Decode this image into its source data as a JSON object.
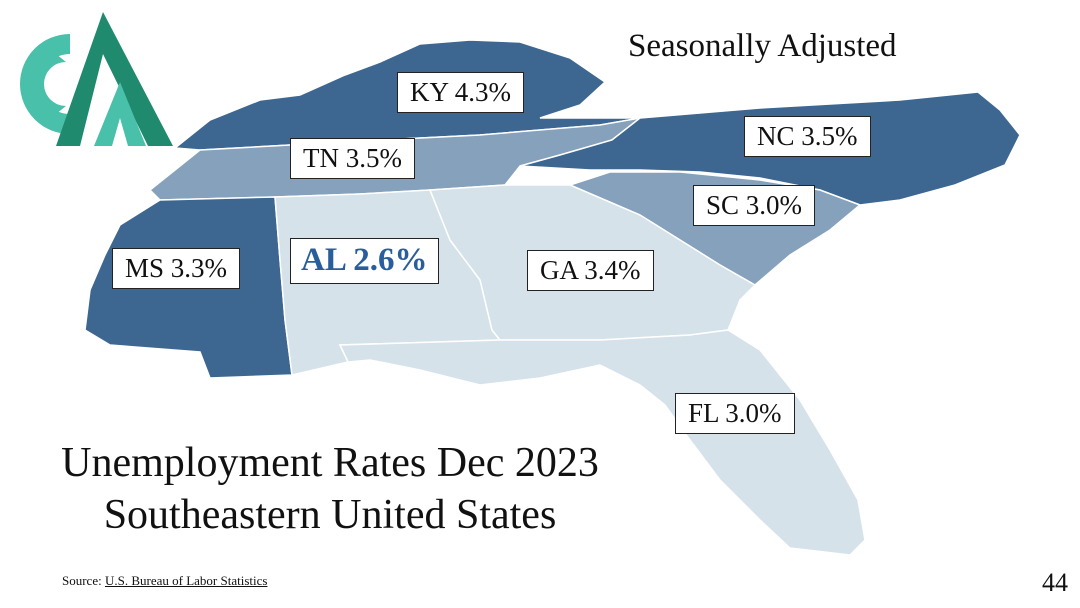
{
  "subtitle": "Seasonally Adjusted",
  "title_line1": "Unemployment Rates Dec 2023",
  "title_line2": "Southeastern United States",
  "source_prefix": "Source: ",
  "source_link": "U.S. Bureau of Labor Statistics",
  "page_number": "44",
  "colors": {
    "dark": "#3d6690",
    "medium": "#86a1bb",
    "light": "#d5e2ea",
    "highlight_text": "#2a5d9c",
    "logo_green": "#1f8a6e",
    "logo_teal": "#49c0aa"
  },
  "states": [
    {
      "abbr": "KY",
      "value": 4.3,
      "label": "KY 4.3%",
      "shade": "dark"
    },
    {
      "abbr": "TN",
      "value": 3.5,
      "label": "TN 3.5%",
      "shade": "medium"
    },
    {
      "abbr": "NC",
      "value": 3.5,
      "label": "NC 3.5%",
      "shade": "dark"
    },
    {
      "abbr": "SC",
      "value": 3.0,
      "label": "SC 3.0%",
      "shade": "medium"
    },
    {
      "abbr": "MS",
      "value": 3.3,
      "label": "MS 3.3%",
      "shade": "dark"
    },
    {
      "abbr": "AL",
      "value": 2.6,
      "label": "AL 2.6%",
      "shade": "light"
    },
    {
      "abbr": "GA",
      "value": 3.4,
      "label": "GA 3.4%",
      "shade": "light"
    },
    {
      "abbr": "FL",
      "value": 3.0,
      "label": "FL 3.0%",
      "shade": "light"
    }
  ],
  "logo_icon": "company-logo"
}
